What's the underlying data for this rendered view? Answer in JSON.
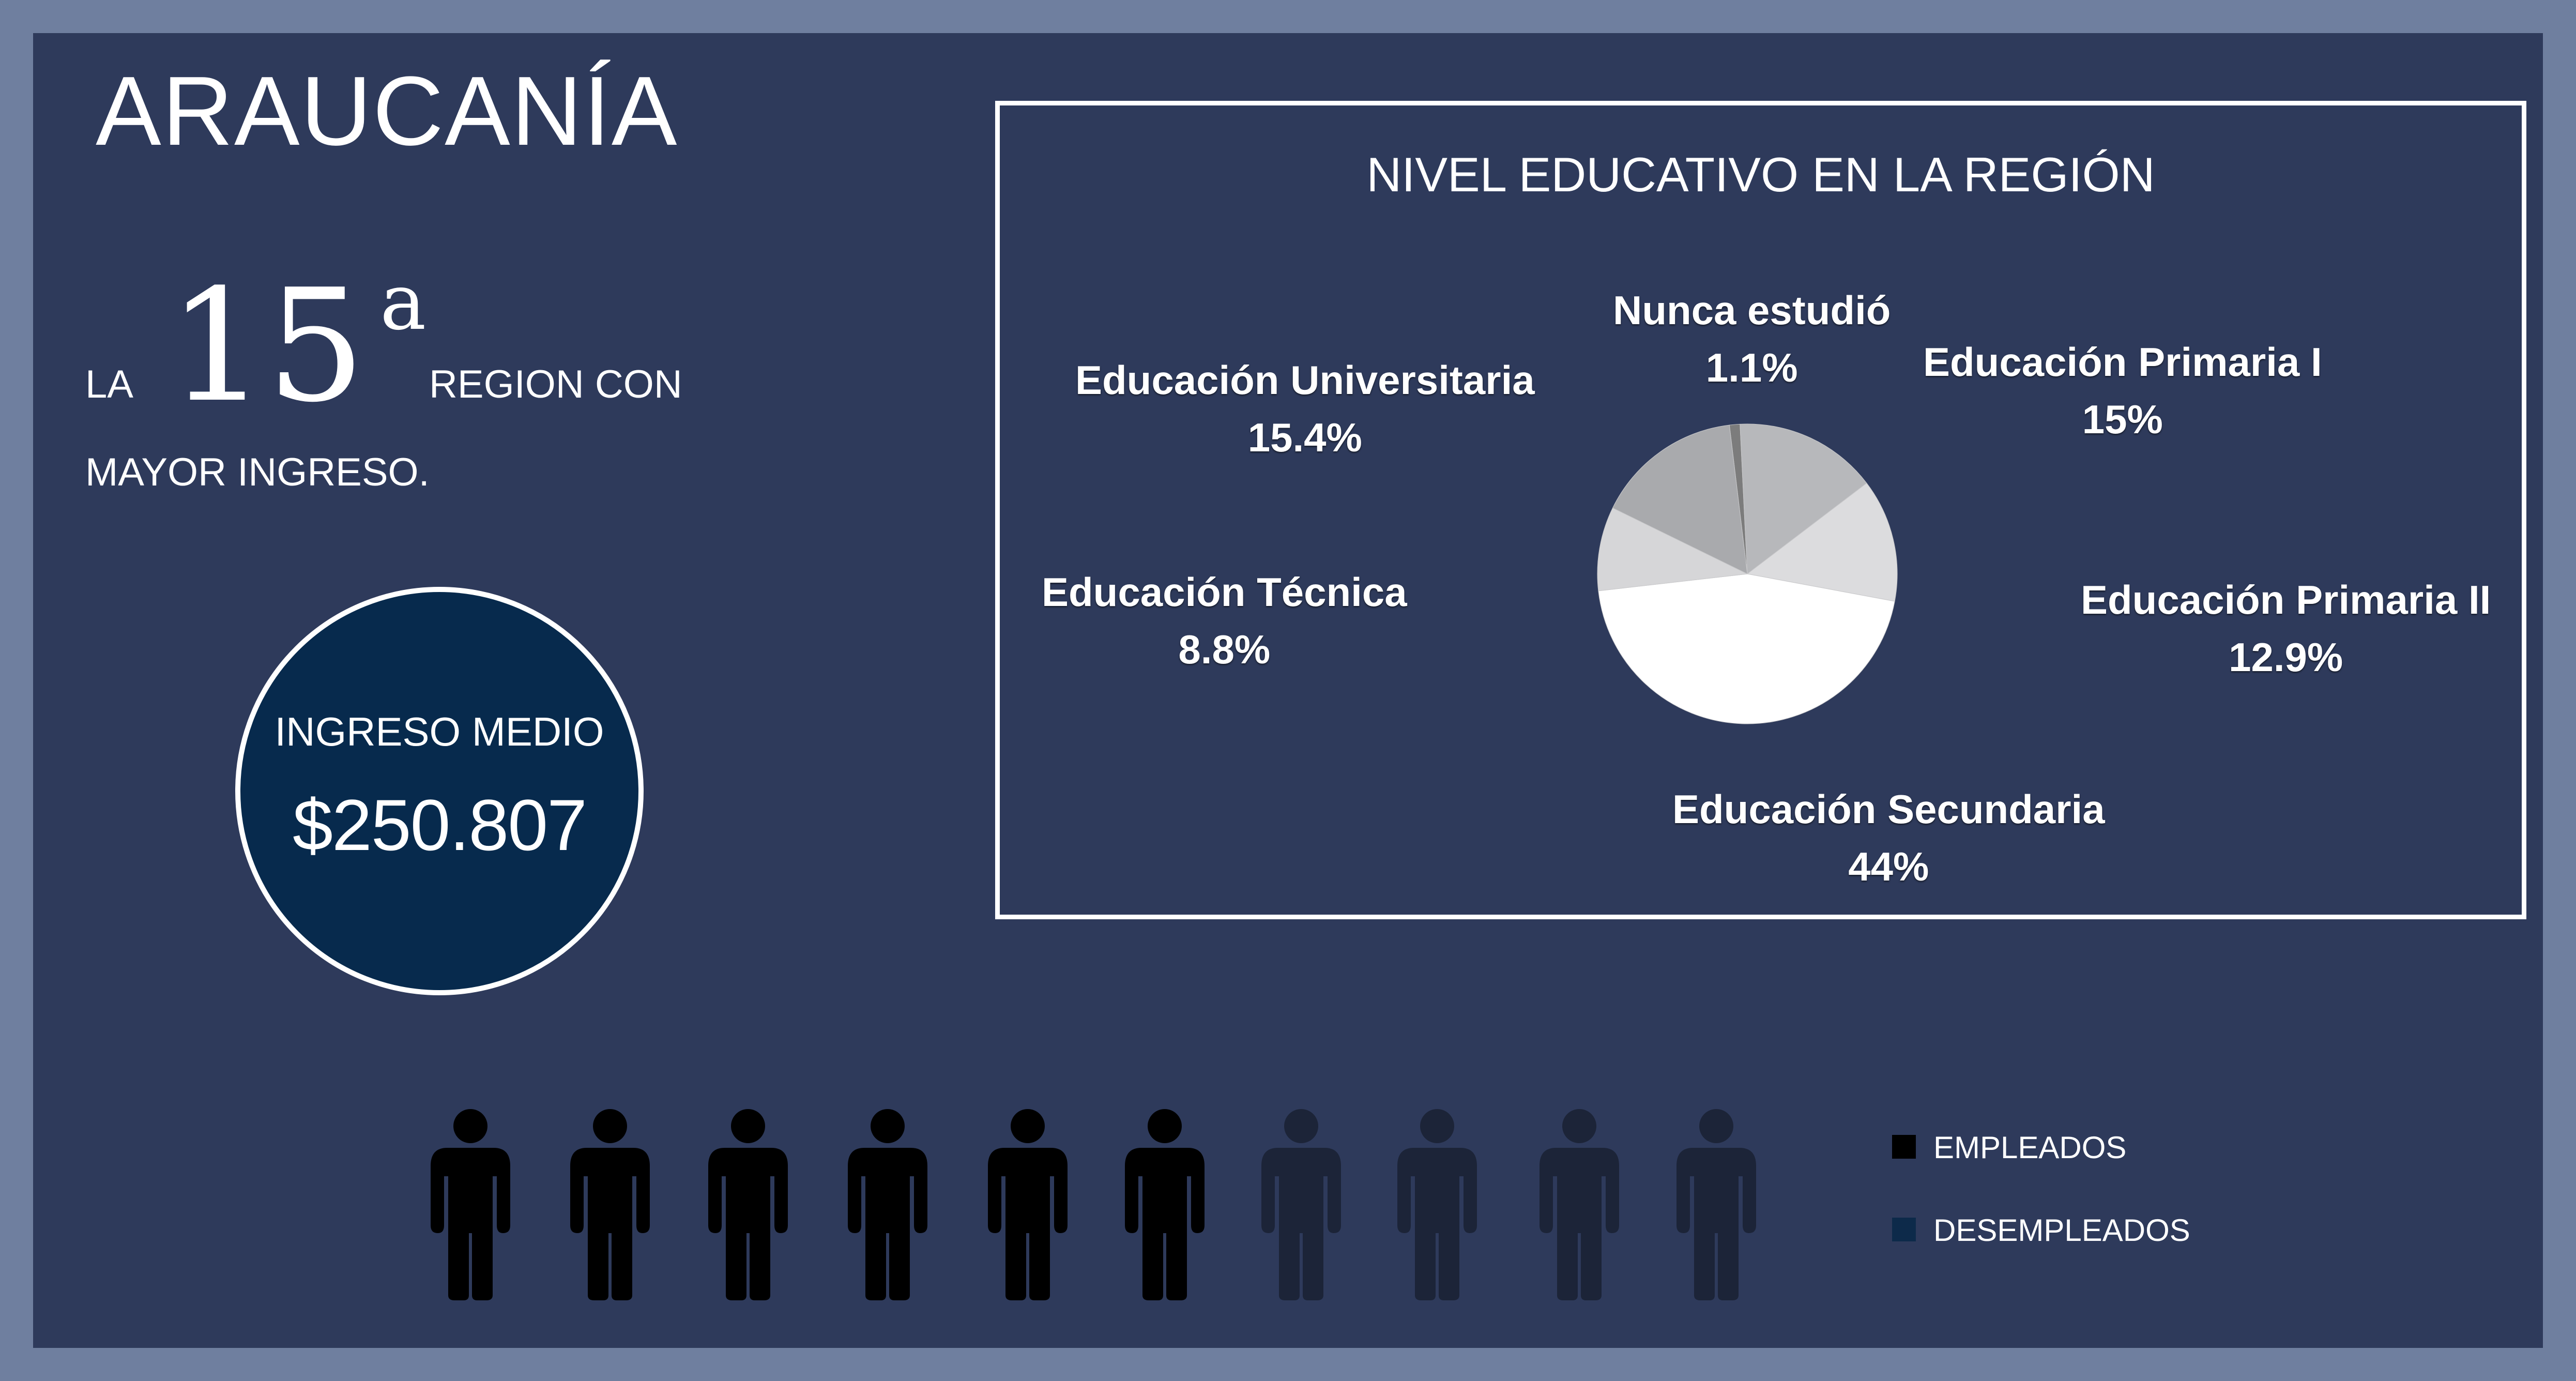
{
  "region": {
    "name": "ARAUCANÍA"
  },
  "ranking": {
    "prefix": "LA",
    "number": "15",
    "ordinal": "a",
    "suffix_line1": "REGION CON",
    "suffix_line2": "MAYOR INGRESO."
  },
  "income": {
    "label": "INGRESO MEDIO",
    "value": "$250.807"
  },
  "chart_data": {
    "type": "pie",
    "title": "NIVEL EDUCATIVO EN LA REGIÓN",
    "slices": [
      {
        "label": "Nunca estudió",
        "value": 1.1,
        "value_label": "1.1%",
        "color": "#7c7c7c"
      },
      {
        "label": "Educación Primaria I",
        "value": 15,
        "value_label": "15%",
        "color": "#b7b8bb"
      },
      {
        "label": "Educación Primaria II",
        "value": 12.9,
        "value_label": "12.9%",
        "color": "#dcdcde"
      },
      {
        "label": "Educación Secundaria",
        "value": 44,
        "value_label": "44%",
        "color": "#ffffff"
      },
      {
        "label": "Educación Técnica",
        "value": 8.8,
        "value_label": "8.8%",
        "color": "#d6d6d8"
      },
      {
        "label": "Educación Universitaria",
        "value": 15.4,
        "value_label": "15.4%",
        "color": "#a9aaad"
      }
    ]
  },
  "employment": {
    "employed_count": 6,
    "unemployed_count": 4,
    "colors": {
      "employed": "#000000",
      "unemployed": "#1c2438"
    },
    "legend": {
      "employed_label": "EMPLEADOS",
      "unemployed_label": "DESEMPLEADOS",
      "employed_swatch": "#000000",
      "unemployed_swatch": "#0d2a4a"
    },
    "icon": "person-icon"
  }
}
